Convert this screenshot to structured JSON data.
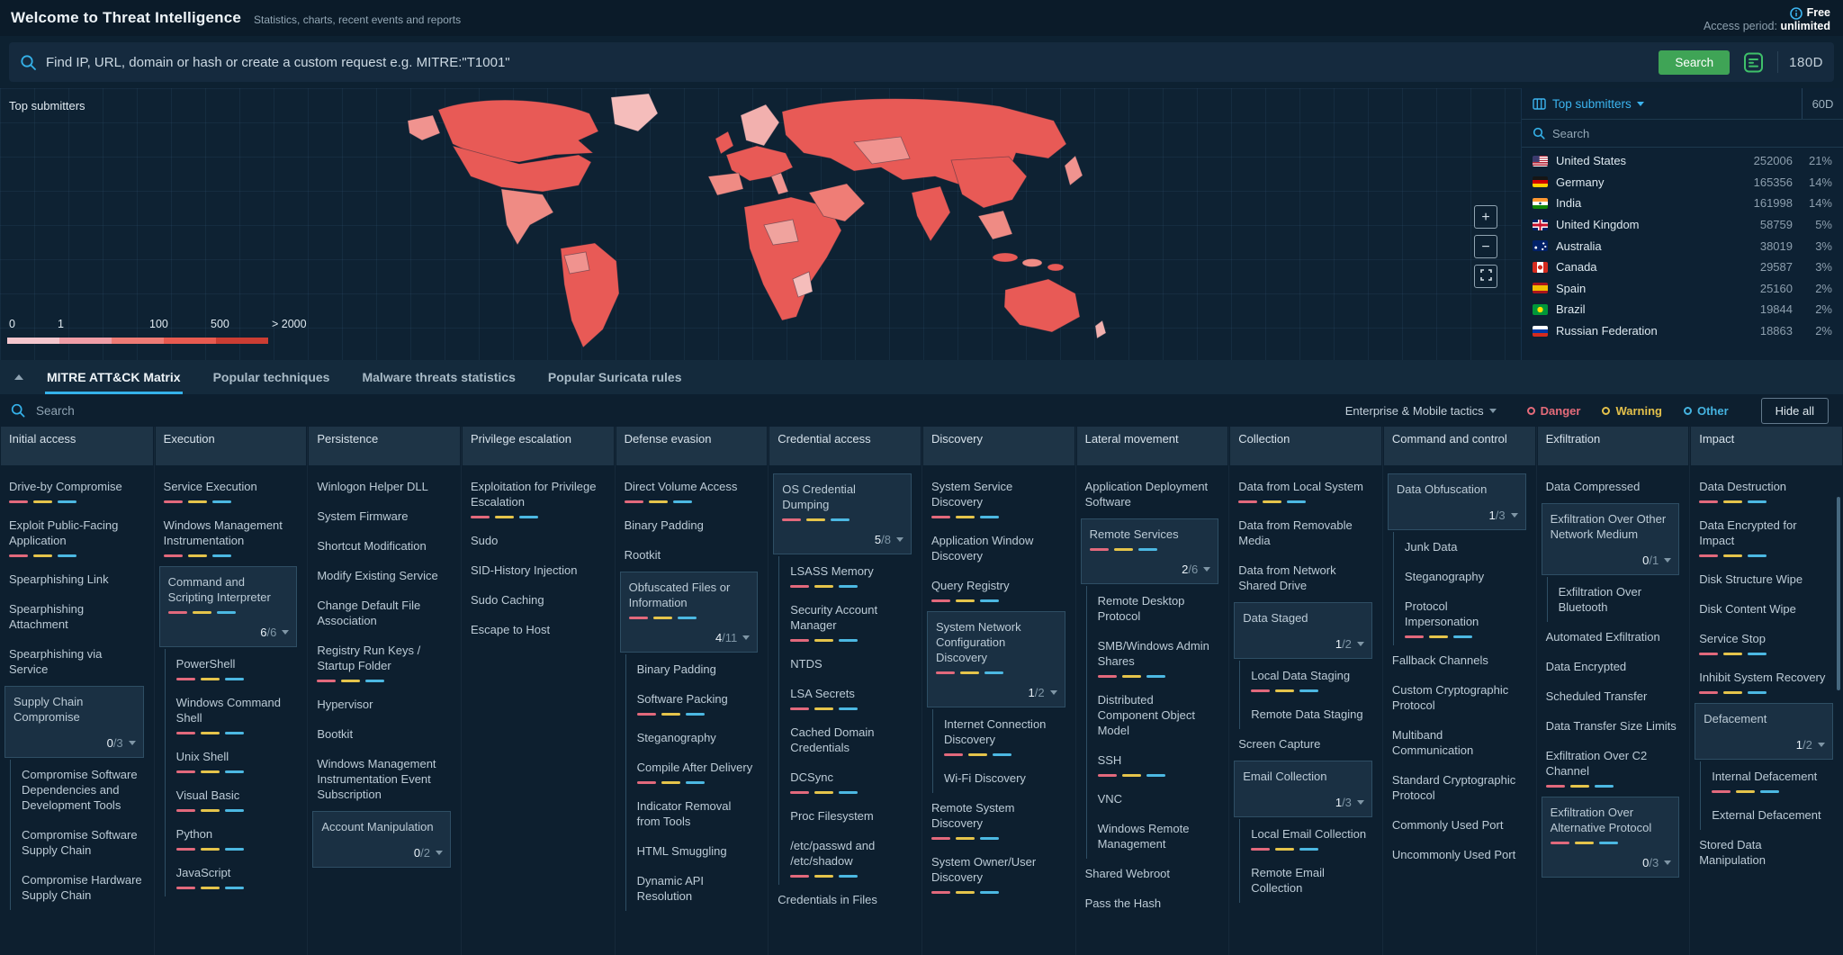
{
  "header": {
    "title": "Welcome to Threat Intelligence",
    "subtitle": "Statistics, charts, recent events and reports",
    "plan_badge": "Free",
    "access_period_label": "Access period:",
    "access_period_value": "unlimited"
  },
  "search": {
    "placeholder": "Find IP, URL, domain or hash or create a custom request e.g. MITRE:\"T1001\"",
    "button_label": "Search",
    "range": "180D"
  },
  "map": {
    "title": "Top submitters",
    "controls": [
      {
        "name": "zoom-in",
        "glyph": "+"
      },
      {
        "name": "zoom-out",
        "glyph": "−"
      },
      {
        "name": "fullscreen",
        "glyph": ""
      }
    ],
    "legend": {
      "labels": [
        "0",
        "1",
        "100",
        "500",
        "> 2000"
      ],
      "colors": [
        "#f4c6cd",
        "#f09da6",
        "#ee7b75",
        "#e75a50",
        "#cb3d33"
      ]
    }
  },
  "panel": {
    "title": "Top submitters",
    "range": "60D",
    "search_placeholder": "Search",
    "countries": [
      {
        "flag": "us",
        "name": "United States",
        "count": "252006",
        "percent": "21%"
      },
      {
        "flag": "de",
        "name": "Germany",
        "count": "165356",
        "percent": "14%"
      },
      {
        "flag": "in",
        "name": "India",
        "count": "161998",
        "percent": "14%"
      },
      {
        "flag": "gb",
        "name": "United Kingdom",
        "count": "58759",
        "percent": "5%"
      },
      {
        "flag": "au",
        "name": "Australia",
        "count": "38019",
        "percent": "3%"
      },
      {
        "flag": "ca",
        "name": "Canada",
        "count": "29587",
        "percent": "3%"
      },
      {
        "flag": "es",
        "name": "Spain",
        "count": "25160",
        "percent": "2%"
      },
      {
        "flag": "br",
        "name": "Brazil",
        "count": "19844",
        "percent": "2%"
      },
      {
        "flag": "ru",
        "name": "Russian Federation",
        "count": "18863",
        "percent": "2%"
      }
    ]
  },
  "tabs": {
    "active": 0,
    "items": [
      "MITRE ATT&CK Matrix",
      "Popular techniques",
      "Malware threats statistics",
      "Popular Suricata rules"
    ]
  },
  "matrix_toolbar": {
    "search_placeholder": "Search",
    "tactics_filter": "Enterprise & Mobile tactics",
    "legend": [
      {
        "label": "Danger",
        "color": "#e56b7a"
      },
      {
        "label": "Warning",
        "color": "#e3c04b"
      },
      {
        "label": "Other",
        "color": "#45b3e0"
      }
    ],
    "hide_all_label": "Hide all"
  },
  "matrix": {
    "bar_colors": [
      "#e2697c",
      "#e5c44b",
      "#4cb8e2"
    ],
    "columns": [
      {
        "title": "Initial access",
        "cells": [
          {
            "label": "Drive-by Compromise",
            "bars": true
          },
          {
            "label": "Exploit Public-Facing Application",
            "bars": true
          },
          {
            "label": "Spearphishing Link"
          },
          {
            "label": "Spearphishing Attachment"
          },
          {
            "label": "Spearphishing via Service"
          },
          {
            "label": "Supply Chain Compromise",
            "box": true,
            "count": "0/3",
            "children": [
              {
                "label": "Compromise Software Dependencies and Development Tools"
              },
              {
                "label": "Compromise Software Supply Chain"
              },
              {
                "label": "Compromise Hardware Supply Chain"
              }
            ]
          }
        ]
      },
      {
        "title": "Execution",
        "cells": [
          {
            "label": "Service Execution",
            "bars": true
          },
          {
            "label": "Windows Management Instrumentation",
            "bars": true
          },
          {
            "label": "Command and Scripting Interpreter",
            "box": true,
            "bars": true,
            "count": "6/6",
            "children": [
              {
                "label": "PowerShell",
                "bars": true
              },
              {
                "label": "Windows Command Shell",
                "bars": true
              },
              {
                "label": "Unix Shell",
                "bars": true
              },
              {
                "label": "Visual Basic",
                "bars": true
              },
              {
                "label": "Python",
                "bars": true
              },
              {
                "label": "JavaScript",
                "bars": true
              }
            ]
          }
        ]
      },
      {
        "title": "Persistence",
        "cells": [
          {
            "label": "Winlogon Helper DLL"
          },
          {
            "label": "System Firmware"
          },
          {
            "label": "Shortcut Modification"
          },
          {
            "label": "Modify Existing Service"
          },
          {
            "label": "Change Default File Association"
          },
          {
            "label": "Registry Run Keys / Startup Folder",
            "bars": true
          },
          {
            "label": "Hypervisor"
          },
          {
            "label": "Bootkit"
          },
          {
            "label": "Windows Management Instrumentation Event Subscription"
          },
          {
            "label": "Account Manipulation",
            "box": true,
            "count": "0/2"
          }
        ]
      },
      {
        "title": "Privilege escalation",
        "cells": [
          {
            "label": "Exploitation for Privilege Escalation",
            "bars": true
          },
          {
            "label": "Sudo"
          },
          {
            "label": "SID-History Injection"
          },
          {
            "label": "Sudo Caching"
          },
          {
            "label": "Escape to Host"
          }
        ]
      },
      {
        "title": "Defense evasion",
        "cells": [
          {
            "label": "Direct Volume Access",
            "bars": true
          },
          {
            "label": "Binary Padding"
          },
          {
            "label": "Rootkit"
          },
          {
            "label": "Obfuscated Files or Information",
            "box": true,
            "bars": true,
            "count": "4/11",
            "children": [
              {
                "label": "Binary Padding"
              },
              {
                "label": "Software Packing",
                "bars": true
              },
              {
                "label": "Steganography"
              },
              {
                "label": "Compile After Delivery",
                "bars": true
              },
              {
                "label": "Indicator Removal from Tools"
              },
              {
                "label": "HTML Smuggling"
              },
              {
                "label": "Dynamic API Resolution"
              }
            ]
          }
        ]
      },
      {
        "title": "Credential access",
        "cells": [
          {
            "label": "OS Credential Dumping",
            "box": true,
            "bars": true,
            "count": "5/8",
            "children": [
              {
                "label": "LSASS Memory",
                "bars": true
              },
              {
                "label": "Security Account Manager",
                "bars": true
              },
              {
                "label": "NTDS"
              },
              {
                "label": "LSA Secrets",
                "bars": true
              },
              {
                "label": "Cached Domain Credentials"
              },
              {
                "label": "DCSync",
                "bars": true
              },
              {
                "label": "Proc Filesystem"
              },
              {
                "label": "/etc/passwd and /etc/shadow",
                "bars": true
              }
            ]
          },
          {
            "label": "Credentials in Files"
          }
        ]
      },
      {
        "title": "Discovery",
        "cells": [
          {
            "label": "System Service Discovery",
            "bars": true
          },
          {
            "label": "Application Window Discovery"
          },
          {
            "label": "Query Registry",
            "bars": true
          },
          {
            "label": "System Network Configuration Discovery",
            "box": true,
            "bars": true,
            "count": "1/2",
            "children": [
              {
                "label": "Internet Connection Discovery",
                "bars": true
              },
              {
                "label": "Wi-Fi Discovery"
              }
            ]
          },
          {
            "label": "Remote System Discovery",
            "bars": true
          },
          {
            "label": "System Owner/User Discovery",
            "bars": true
          }
        ]
      },
      {
        "title": "Lateral movement",
        "cells": [
          {
            "label": "Application Deployment Software"
          },
          {
            "label": "Remote Services",
            "box": true,
            "bars": true,
            "count": "2/6",
            "children": [
              {
                "label": "Remote Desktop Protocol"
              },
              {
                "label": "SMB/Windows Admin Shares",
                "bars": true
              },
              {
                "label": "Distributed Component Object Model"
              },
              {
                "label": "SSH",
                "bars": true
              },
              {
                "label": "VNC"
              },
              {
                "label": "Windows Remote Management"
              }
            ]
          },
          {
            "label": "Shared Webroot"
          },
          {
            "label": "Pass the Hash"
          }
        ]
      },
      {
        "title": "Collection",
        "cells": [
          {
            "label": "Data from Local System",
            "bars": true
          },
          {
            "label": "Data from Removable Media"
          },
          {
            "label": "Data from Network Shared Drive"
          },
          {
            "label": "Data Staged",
            "box": true,
            "count": "1/2",
            "children": [
              {
                "label": "Local Data Staging",
                "bars": true
              },
              {
                "label": "Remote Data Staging"
              }
            ]
          },
          {
            "label": "Screen Capture"
          },
          {
            "label": "Email Collection",
            "box": true,
            "count": "1/3",
            "children": [
              {
                "label": "Local Email Collection",
                "bars": true
              },
              {
                "label": "Remote Email Collection"
              }
            ]
          }
        ]
      },
      {
        "title": "Command and control",
        "cells": [
          {
            "label": "Data Obfuscation",
            "box": true,
            "count": "1/3",
            "children": [
              {
                "label": "Junk Data"
              },
              {
                "label": "Steganography"
              },
              {
                "label": "Protocol Impersonation",
                "bars": true
              }
            ]
          },
          {
            "label": "Fallback Channels"
          },
          {
            "label": "Custom Cryptographic Protocol"
          },
          {
            "label": "Multiband Communication"
          },
          {
            "label": "Standard Cryptographic Protocol"
          },
          {
            "label": "Commonly Used Port"
          },
          {
            "label": "Uncommonly Used Port"
          }
        ]
      },
      {
        "title": "Exfiltration",
        "cells": [
          {
            "label": "Data Compressed"
          },
          {
            "label": "Exfiltration Over Other Network Medium",
            "box": true,
            "count": "0/1",
            "children": [
              {
                "label": "Exfiltration Over Bluetooth"
              }
            ]
          },
          {
            "label": "Automated Exfiltration"
          },
          {
            "label": "Data Encrypted"
          },
          {
            "label": "Scheduled Transfer"
          },
          {
            "label": "Data Transfer Size Limits"
          },
          {
            "label": "Exfiltration Over C2 Channel",
            "bars": true
          },
          {
            "label": "Exfiltration Over Alternative Protocol",
            "box": true,
            "bars": true,
            "count": "0/3"
          }
        ]
      },
      {
        "title": "Impact",
        "cells": [
          {
            "label": "Data Destruction",
            "bars": true
          },
          {
            "label": "Data Encrypted for Impact",
            "bars": true
          },
          {
            "label": "Disk Structure Wipe"
          },
          {
            "label": "Disk Content Wipe"
          },
          {
            "label": "Service Stop",
            "bars": true
          },
          {
            "label": "Inhibit System Recovery",
            "bars": true
          },
          {
            "label": "Defacement",
            "box": true,
            "count": "1/2",
            "children": [
              {
                "label": "Internal Defacement",
                "bars": true
              },
              {
                "label": "External Defacement"
              }
            ]
          },
          {
            "label": "Stored Data Manipulation"
          }
        ]
      }
    ]
  }
}
